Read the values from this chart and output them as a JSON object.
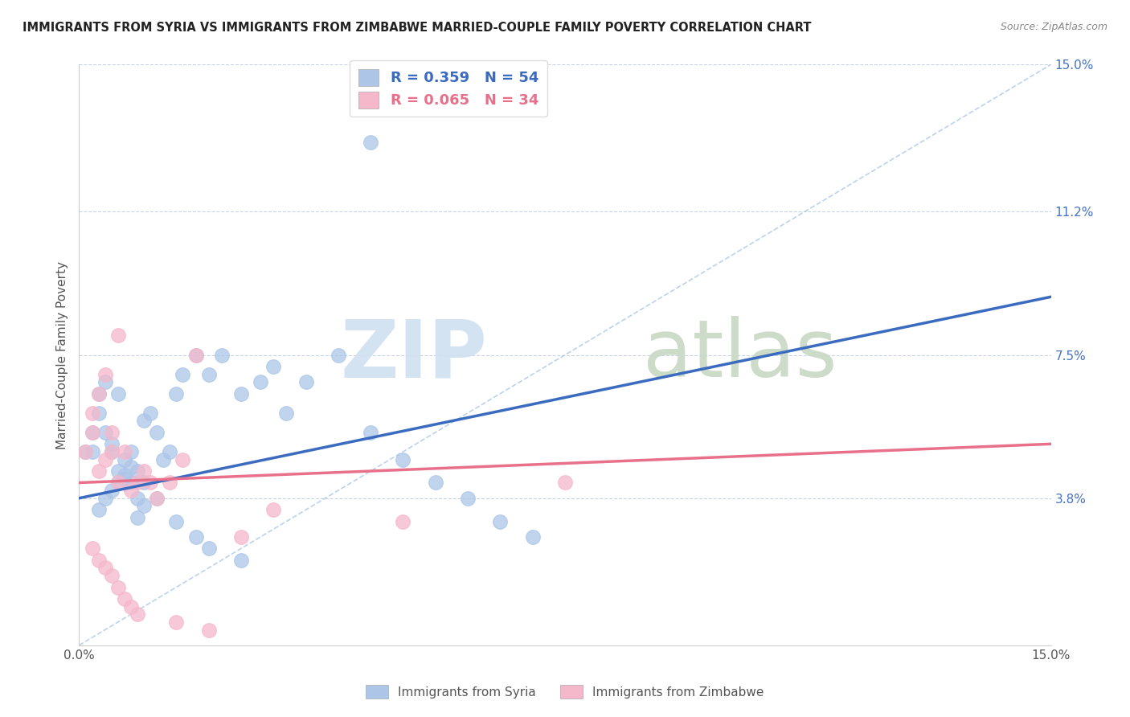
{
  "title": "IMMIGRANTS FROM SYRIA VS IMMIGRANTS FROM ZIMBABWE MARRIED-COUPLE FAMILY POVERTY CORRELATION CHART",
  "source": "Source: ZipAtlas.com",
  "ylabel": "Married-Couple Family Poverty",
  "xlim": [
    0,
    0.15
  ],
  "ylim": [
    0,
    0.15
  ],
  "ytick_labels_right": [
    "3.8%",
    "7.5%",
    "11.2%",
    "15.0%"
  ],
  "ytick_vals_right": [
    0.038,
    0.075,
    0.112,
    0.15
  ],
  "syria_color": "#adc6e8",
  "zimbabwe_color": "#f5b8cb",
  "syria_line_color": "#3a6bbf",
  "zimbabwe_line_color": "#e8708a",
  "diagonal_color": "#aac8e8",
  "legend_syria_r": "R = 0.359",
  "legend_syria_n": "N = 54",
  "legend_zimbabwe_r": "R = 0.065",
  "legend_zimbabwe_n": "N = 34",
  "syria_line": [
    0.0,
    0.038,
    0.15,
    0.09
  ],
  "zimbabwe_line": [
    0.0,
    0.042,
    0.15,
    0.052
  ],
  "syria_x": [
    0.001,
    0.002,
    0.002,
    0.003,
    0.003,
    0.004,
    0.004,
    0.005,
    0.005,
    0.006,
    0.006,
    0.007,
    0.007,
    0.008,
    0.008,
    0.009,
    0.009,
    0.01,
    0.01,
    0.011,
    0.012,
    0.013,
    0.014,
    0.015,
    0.016,
    0.018,
    0.02,
    0.022,
    0.025,
    0.028,
    0.03,
    0.032,
    0.035,
    0.04,
    0.045,
    0.05,
    0.055,
    0.06,
    0.065,
    0.07,
    0.003,
    0.004,
    0.005,
    0.006,
    0.007,
    0.008,
    0.009,
    0.01,
    0.012,
    0.015,
    0.018,
    0.02,
    0.025,
    0.045
  ],
  "syria_y": [
    0.05,
    0.05,
    0.055,
    0.06,
    0.065,
    0.068,
    0.055,
    0.052,
    0.05,
    0.065,
    0.045,
    0.043,
    0.048,
    0.042,
    0.05,
    0.038,
    0.045,
    0.042,
    0.058,
    0.06,
    0.055,
    0.048,
    0.05,
    0.065,
    0.07,
    0.075,
    0.07,
    0.075,
    0.065,
    0.068,
    0.072,
    0.06,
    0.068,
    0.075,
    0.055,
    0.048,
    0.042,
    0.038,
    0.032,
    0.028,
    0.035,
    0.038,
    0.04,
    0.042,
    0.044,
    0.046,
    0.033,
    0.036,
    0.038,
    0.032,
    0.028,
    0.025,
    0.022,
    0.13
  ],
  "zimbabwe_x": [
    0.001,
    0.002,
    0.002,
    0.003,
    0.003,
    0.004,
    0.004,
    0.005,
    0.005,
    0.006,
    0.006,
    0.007,
    0.008,
    0.009,
    0.01,
    0.011,
    0.012,
    0.014,
    0.016,
    0.018,
    0.002,
    0.003,
    0.004,
    0.005,
    0.006,
    0.007,
    0.008,
    0.009,
    0.015,
    0.02,
    0.025,
    0.03,
    0.075,
    0.05
  ],
  "zimbabwe_y": [
    0.05,
    0.055,
    0.06,
    0.065,
    0.045,
    0.07,
    0.048,
    0.05,
    0.055,
    0.08,
    0.042,
    0.05,
    0.04,
    0.042,
    0.045,
    0.042,
    0.038,
    0.042,
    0.048,
    0.075,
    0.025,
    0.022,
    0.02,
    0.018,
    0.015,
    0.012,
    0.01,
    0.008,
    0.006,
    0.004,
    0.028,
    0.035,
    0.042,
    0.032
  ]
}
